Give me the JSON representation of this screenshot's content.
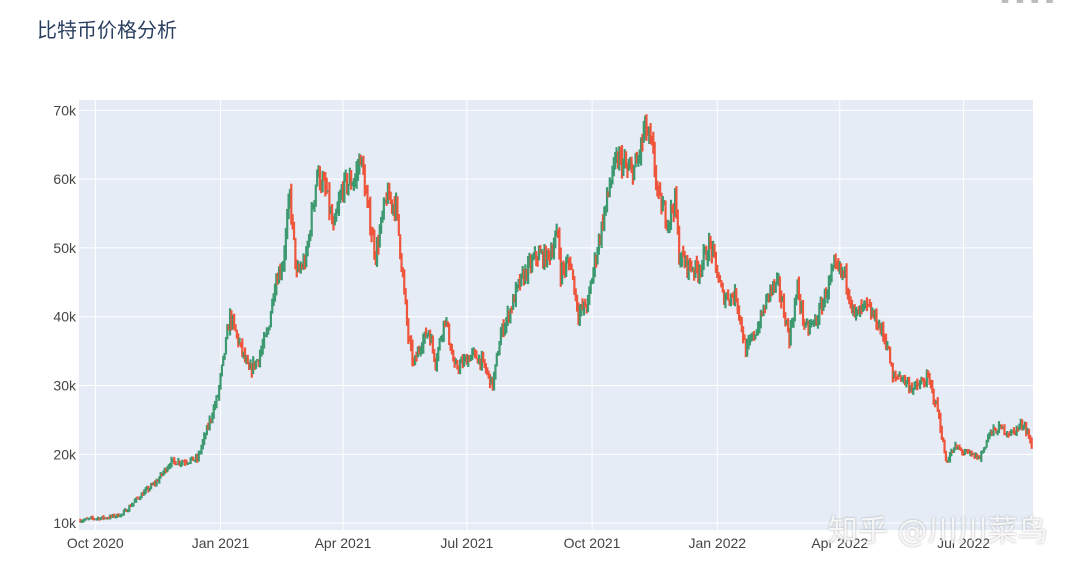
{
  "title": "比特币价格分析",
  "toolbar": {
    "icons": [
      "camera-icon",
      "zoom-icon",
      "pan-icon",
      "home-icon"
    ]
  },
  "watermark": "知乎 @川川菜鸟",
  "colors": {
    "up": "#3d9970",
    "down": "#ef553b",
    "plot_bg": "#e5ecf6",
    "grid": "#ffffff"
  },
  "chart_data": {
    "type": "candlestick",
    "title": "比特币价格分析",
    "xlabel": "",
    "ylabel": "",
    "x_range": [
      "2020-09-19",
      "2022-08-21"
    ],
    "y_range": [
      9000,
      71500
    ],
    "grid": true,
    "legend": "none",
    "y_ticks": [
      {
        "value": 10000,
        "label": "10k"
      },
      {
        "value": 20000,
        "label": "20k"
      },
      {
        "value": 30000,
        "label": "30k"
      },
      {
        "value": 40000,
        "label": "40k"
      },
      {
        "value": 50000,
        "label": "50k"
      },
      {
        "value": 60000,
        "label": "60k"
      },
      {
        "value": 70000,
        "label": "70k"
      }
    ],
    "x_ticks": [
      {
        "date": "2020-10-01",
        "label": "Oct 2020"
      },
      {
        "date": "2021-01-01",
        "label": "Jan 2021"
      },
      {
        "date": "2021-04-01",
        "label": "Apr 2021"
      },
      {
        "date": "2021-07-01",
        "label": "Jul 2021"
      },
      {
        "date": "2021-10-01",
        "label": "Oct 2021"
      },
      {
        "date": "2022-01-01",
        "label": "Jan 2022"
      },
      {
        "date": "2022-04-01",
        "label": "Apr 2022"
      },
      {
        "date": "2022-07-01",
        "label": "Jul 2022"
      }
    ],
    "close_series": [
      [
        "2020-09-20",
        10400
      ],
      [
        "2020-10-01",
        10700
      ],
      [
        "2020-10-10",
        10800
      ],
      [
        "2020-10-21",
        11300
      ],
      [
        "2020-11-01",
        13600
      ],
      [
        "2020-11-15",
        16000
      ],
      [
        "2020-11-25",
        18800
      ],
      [
        "2020-12-05",
        19000
      ],
      [
        "2020-12-15",
        19300
      ],
      [
        "2020-12-22",
        23500
      ],
      [
        "2020-12-30",
        28500
      ],
      [
        "2021-01-08",
        40000
      ],
      [
        "2021-01-15",
        36000
      ],
      [
        "2021-01-22",
        32000
      ],
      [
        "2021-01-29",
        34000
      ],
      [
        "2021-02-05",
        38000
      ],
      [
        "2021-02-10",
        45000
      ],
      [
        "2021-02-16",
        48000
      ],
      [
        "2021-02-21",
        57500
      ],
      [
        "2021-02-26",
        46000
      ],
      [
        "2021-03-05",
        48500
      ],
      [
        "2021-03-13",
        61000
      ],
      [
        "2021-03-20",
        58000
      ],
      [
        "2021-03-25",
        52500
      ],
      [
        "2021-04-01",
        59000
      ],
      [
        "2021-04-10",
        60000
      ],
      [
        "2021-04-14",
        63500
      ],
      [
        "2021-04-19",
        56000
      ],
      [
        "2021-04-25",
        49000
      ],
      [
        "2021-05-03",
        57500
      ],
      [
        "2021-05-10",
        56000
      ],
      [
        "2021-05-13",
        50000
      ],
      [
        "2021-05-19",
        37000
      ],
      [
        "2021-05-23",
        33000
      ],
      [
        "2021-05-28",
        36000
      ],
      [
        "2021-06-03",
        38000
      ],
      [
        "2021-06-08",
        33500
      ],
      [
        "2021-06-15",
        40000
      ],
      [
        "2021-06-22",
        32500
      ],
      [
        "2021-06-26",
        33000
      ],
      [
        "2021-07-05",
        34500
      ],
      [
        "2021-07-12",
        33500
      ],
      [
        "2021-07-20",
        30000
      ],
      [
        "2021-07-26",
        37500
      ],
      [
        "2021-08-01",
        40500
      ],
      [
        "2021-08-08",
        44500
      ],
      [
        "2021-08-15",
        47000
      ],
      [
        "2021-08-22",
        49000
      ],
      [
        "2021-08-29",
        48500
      ],
      [
        "2021-09-06",
        52000
      ],
      [
        "2021-09-08",
        46500
      ],
      [
        "2021-09-15",
        48000
      ],
      [
        "2021-09-21",
        40500
      ],
      [
        "2021-09-28",
        42000
      ],
      [
        "2021-10-03",
        48000
      ],
      [
        "2021-10-10",
        55000
      ],
      [
        "2021-10-16",
        61000
      ],
      [
        "2021-10-21",
        63000
      ],
      [
        "2021-10-28",
        61000
      ],
      [
        "2021-11-03",
        62000
      ],
      [
        "2021-11-09",
        67500
      ],
      [
        "2021-11-14",
        64500
      ],
      [
        "2021-11-19",
        57000
      ],
      [
        "2021-11-26",
        54000
      ],
      [
        "2021-12-01",
        57000
      ],
      [
        "2021-12-04",
        49000
      ],
      [
        "2021-12-10",
        47500
      ],
      [
        "2021-12-18",
        46800
      ],
      [
        "2021-12-27",
        50500
      ],
      [
        "2022-01-05",
        43000
      ],
      [
        "2022-01-15",
        43000
      ],
      [
        "2022-01-22",
        35000
      ],
      [
        "2022-01-31",
        38500
      ],
      [
        "2022-02-09",
        44000
      ],
      [
        "2022-02-15",
        44500
      ],
      [
        "2022-02-23",
        37000
      ],
      [
        "2022-03-01",
        44000
      ],
      [
        "2022-03-07",
        38000
      ],
      [
        "2022-03-15",
        39500
      ],
      [
        "2022-03-28",
        47000
      ],
      [
        "2022-04-05",
        46000
      ],
      [
        "2022-04-12",
        40000
      ],
      [
        "2022-04-20",
        41500
      ],
      [
        "2022-04-28",
        39500
      ],
      [
        "2022-05-06",
        36000
      ],
      [
        "2022-05-10",
        31000
      ],
      [
        "2022-05-15",
        31500
      ],
      [
        "2022-05-25",
        29500
      ],
      [
        "2022-06-05",
        31000
      ],
      [
        "2022-06-12",
        26500
      ],
      [
        "2022-06-18",
        19000
      ],
      [
        "2022-06-25",
        21000
      ],
      [
        "2022-07-05",
        20000
      ],
      [
        "2022-07-13",
        19500
      ],
      [
        "2022-07-20",
        23000
      ],
      [
        "2022-07-28",
        23800
      ],
      [
        "2022-08-05",
        23000
      ],
      [
        "2022-08-14",
        24500
      ],
      [
        "2022-08-17",
        23300
      ],
      [
        "2022-08-20",
        21000
      ]
    ]
  }
}
